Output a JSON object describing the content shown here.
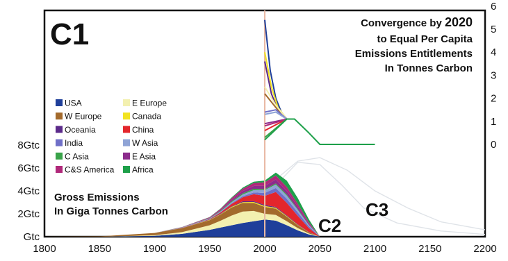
{
  "chart_data": {
    "type": "area",
    "labels": {
      "c1": "C1",
      "c2": "C2",
      "c3": "C3",
      "title_lines": [
        "Convergence by 2020",
        "to Equal Per Capita",
        "Emissions Entitlements",
        "In Tonnes Carbon"
      ],
      "gross_lines": [
        "Gross Emissions",
        "In Giga Tonnes Carbon"
      ]
    },
    "x_axis": {
      "ticks": [
        "1800",
        "1850",
        "1900",
        "1950",
        "2000",
        "2050",
        "2100",
        "2150",
        "2200"
      ],
      "range": [
        1800,
        2200
      ]
    },
    "left_axis": {
      "ticks": [
        {
          "label": "Gtc",
          "value": 0
        },
        {
          "label": "2Gtc",
          "value": 2
        },
        {
          "label": "4Gtc",
          "value": 4
        },
        {
          "label": "6Gtc",
          "value": 6
        },
        {
          "label": "8Gtc",
          "value": 8
        }
      ],
      "range": [
        0,
        8
      ]
    },
    "right_axis": {
      "ticks": [
        "0",
        "1",
        "2",
        "3",
        "4",
        "5",
        "6"
      ],
      "range": [
        0,
        6
      ]
    },
    "legend": {
      "position": "left",
      "items": [
        {
          "label": "USA",
          "color": "#1f3f9a"
        },
        {
          "label": "E Europe",
          "color": "#f3f0b0"
        },
        {
          "label": "W Europe",
          "color": "#a36a2c"
        },
        {
          "label": "Canada",
          "color": "#f2e320"
        },
        {
          "label": "Oceania",
          "color": "#5b2a8a"
        },
        {
          "label": "China",
          "color": "#e3262c"
        },
        {
          "label": "India",
          "color": "#6f6fc8"
        },
        {
          "label": "W Asia",
          "color": "#8fa4d6"
        },
        {
          "label": "C Asia",
          "color": "#3aa34a"
        },
        {
          "label": "E Asia",
          "color": "#8c2c8c"
        },
        {
          "label": "C&S America",
          "color": "#b0287a"
        },
        {
          "label": "Africa",
          "color": "#1ea04a"
        }
      ]
    },
    "stack_years": [
      1800,
      1850,
      1900,
      1925,
      1950,
      1960,
      1970,
      1980,
      1990,
      2000,
      2010,
      2020,
      2030,
      2040,
      2050
    ],
    "series": [
      {
        "name": "USA",
        "values": [
          0,
          0,
          0.08,
          0.25,
          0.6,
          0.8,
          1.0,
          1.2,
          1.35,
          1.5,
          1.4,
          1.0,
          0.55,
          0.2,
          0
        ]
      },
      {
        "name": "E Europe",
        "values": [
          0,
          0,
          0.05,
          0.15,
          0.4,
          0.6,
          0.85,
          1.0,
          0.9,
          0.5,
          0.5,
          0.35,
          0.2,
          0.08,
          0
        ]
      },
      {
        "name": "W Europe",
        "values": [
          0,
          0.03,
          0.2,
          0.35,
          0.45,
          0.55,
          0.7,
          0.75,
          0.7,
          0.6,
          0.55,
          0.4,
          0.25,
          0.1,
          0
        ]
      },
      {
        "name": "Canada",
        "values": [
          0,
          0,
          0,
          0.01,
          0.03,
          0.04,
          0.06,
          0.07,
          0.08,
          0.08,
          0.07,
          0.05,
          0.03,
          0.01,
          0
        ]
      },
      {
        "name": "Oceania",
        "values": [
          0,
          0,
          0,
          0.01,
          0.03,
          0.04,
          0.05,
          0.07,
          0.08,
          0.09,
          0.08,
          0.06,
          0.04,
          0.02,
          0
        ]
      },
      {
        "name": "China",
        "values": [
          0,
          0,
          0,
          0.01,
          0.03,
          0.1,
          0.2,
          0.35,
          0.6,
          0.8,
          1.3,
          1.1,
          0.75,
          0.35,
          0
        ]
      },
      {
        "name": "India",
        "values": [
          0,
          0,
          0,
          0.01,
          0.02,
          0.04,
          0.06,
          0.1,
          0.15,
          0.25,
          0.35,
          0.35,
          0.3,
          0.15,
          0
        ]
      },
      {
        "name": "W Asia",
        "values": [
          0,
          0,
          0,
          0.01,
          0.03,
          0.05,
          0.1,
          0.15,
          0.2,
          0.25,
          0.3,
          0.28,
          0.22,
          0.1,
          0
        ]
      },
      {
        "name": "C Asia",
        "values": [
          0,
          0,
          0,
          0.01,
          0.03,
          0.05,
          0.08,
          0.1,
          0.12,
          0.08,
          0.1,
          0.1,
          0.08,
          0.04,
          0
        ]
      },
      {
        "name": "E Asia",
        "values": [
          0,
          0,
          0,
          0.01,
          0.03,
          0.06,
          0.12,
          0.2,
          0.25,
          0.3,
          0.35,
          0.3,
          0.2,
          0.1,
          0
        ]
      },
      {
        "name": "C&S America",
        "values": [
          0,
          0,
          0,
          0.02,
          0.05,
          0.1,
          0.15,
          0.2,
          0.25,
          0.3,
          0.35,
          0.35,
          0.25,
          0.12,
          0
        ]
      },
      {
        "name": "Africa",
        "values": [
          0,
          0,
          0,
          0.01,
          0.02,
          0.04,
          0.06,
          0.1,
          0.12,
          0.15,
          0.25,
          0.55,
          0.5,
          0.25,
          0
        ]
      }
    ],
    "per_capita_lines": [
      {
        "color": "#1f3f9a",
        "points": [
          [
            2000,
            5.4
          ],
          [
            2005,
            3.2
          ],
          [
            2010,
            2.0
          ],
          [
            2015,
            1.4
          ],
          [
            2020,
            1.1
          ]
        ]
      },
      {
        "color": "#5b2a8a",
        "points": [
          [
            2000,
            3.6
          ],
          [
            2006,
            2.2
          ],
          [
            2012,
            1.5
          ],
          [
            2020,
            1.1
          ]
        ]
      },
      {
        "color": "#f2e320",
        "points": [
          [
            2000,
            4.0
          ],
          [
            2006,
            2.5
          ],
          [
            2012,
            1.6
          ],
          [
            2020,
            1.1
          ]
        ]
      },
      {
        "color": "#a36a2c",
        "points": [
          [
            2000,
            2.2
          ],
          [
            2010,
            1.6
          ],
          [
            2020,
            1.1
          ]
        ]
      },
      {
        "color": "#f3f0b0",
        "points": [
          [
            2000,
            2.5
          ],
          [
            2010,
            1.7
          ],
          [
            2020,
            1.1
          ]
        ]
      },
      {
        "color": "#6f6fc8",
        "points": [
          [
            2000,
            1.4
          ],
          [
            2010,
            1.5
          ],
          [
            2020,
            1.1
          ]
        ]
      },
      {
        "color": "#8fa4d6",
        "points": [
          [
            2000,
            1.3
          ],
          [
            2010,
            1.4
          ],
          [
            2020,
            1.1
          ]
        ]
      },
      {
        "color": "#e3262c",
        "points": [
          [
            2000,
            0.6
          ],
          [
            2010,
            0.85
          ],
          [
            2020,
            1.1
          ]
        ]
      },
      {
        "color": "#8c2c8c",
        "points": [
          [
            2000,
            0.9
          ],
          [
            2010,
            1.0
          ],
          [
            2020,
            1.1
          ]
        ]
      },
      {
        "color": "#b0287a",
        "points": [
          [
            2000,
            0.8
          ],
          [
            2010,
            0.95
          ],
          [
            2020,
            1.1
          ]
        ]
      },
      {
        "color": "#3aa34a",
        "points": [
          [
            2000,
            0.3
          ],
          [
            2010,
            0.7
          ],
          [
            2020,
            1.1
          ]
        ]
      },
      {
        "color": "#1ea04a",
        "points": [
          [
            2000,
            0.2
          ],
          [
            2020,
            1.1
          ],
          [
            2027,
            1.1
          ],
          [
            2040,
            0.5
          ],
          [
            2050,
            0.0
          ],
          [
            2100,
            0.0
          ]
        ]
      }
    ],
    "ghost_curves": [
      {
        "points": [
          [
            1990,
            2.0
          ],
          [
            2010,
            5.0
          ],
          [
            2030,
            6.6
          ],
          [
            2050,
            6.9
          ],
          [
            2075,
            5.8
          ],
          [
            2100,
            4.0
          ],
          [
            2130,
            2.5
          ],
          [
            2160,
            1.3
          ],
          [
            2200,
            0.6
          ]
        ]
      },
      {
        "points": [
          [
            1990,
            1.5
          ],
          [
            2010,
            4.5
          ],
          [
            2030,
            6.5
          ],
          [
            2050,
            6.3
          ],
          [
            2070,
            4.5
          ],
          [
            2090,
            2.5
          ],
          [
            2120,
            1.2
          ],
          [
            2160,
            0.5
          ],
          [
            2200,
            0.2
          ]
        ]
      }
    ],
    "reference_line_year": 2000
  }
}
